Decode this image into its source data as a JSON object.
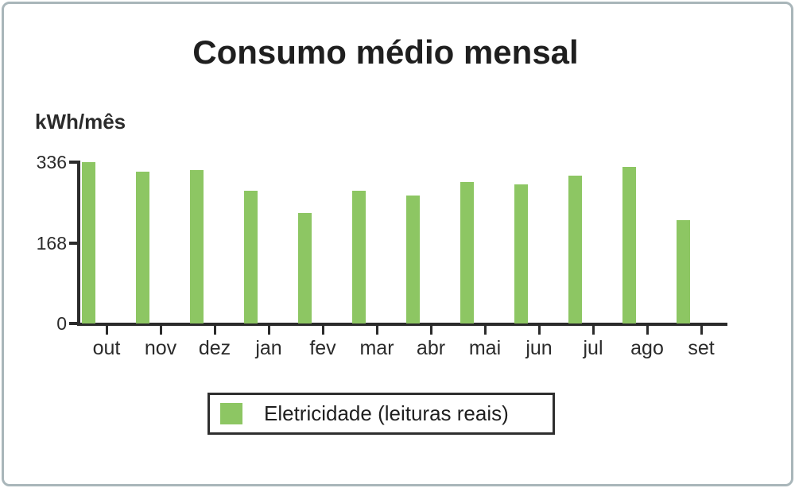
{
  "chart_data": {
    "type": "bar",
    "title": "Consumo médio mensal",
    "ylabel": "kWh/mês",
    "xlabel": "",
    "categories": [
      "out",
      "nov",
      "dez",
      "jan",
      "fev",
      "mar",
      "abr",
      "mai",
      "jun",
      "jul",
      "ago",
      "set"
    ],
    "values": [
      336,
      316,
      320,
      276,
      230,
      276,
      266,
      294,
      290,
      308,
      326,
      215
    ],
    "series": [
      {
        "name": "Eletricidade (leituras reais)",
        "values": [
          336,
          316,
          320,
          276,
          230,
          276,
          266,
          294,
          290,
          308,
          326,
          215
        ]
      }
    ],
    "yticks": [
      336,
      168,
      0
    ],
    "ylim": [
      0,
      336
    ],
    "grid": false,
    "legend": {
      "position": "bottom",
      "entries": [
        {
          "label": "Eletricidade (leituras reais)",
          "color": "#8dc663"
        }
      ]
    }
  },
  "colors": {
    "bar": "#8dc663",
    "axis": "#2b2b2b",
    "frame_border": "#a9b6ba",
    "legend_border": "#2e2e2e",
    "text": "#1f1f1f"
  }
}
